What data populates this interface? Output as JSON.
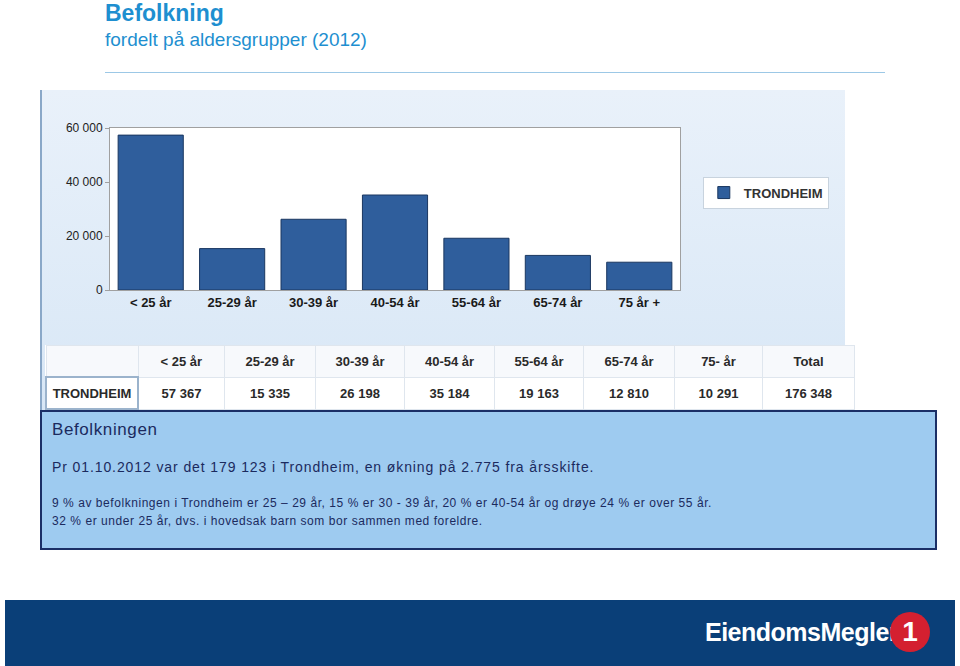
{
  "header": {
    "title": "Befolkning",
    "subtitle": "fordelt på aldersgrupper (2012)"
  },
  "chart_data": {
    "type": "bar",
    "categories": [
      "< 25 år",
      "25-29 år",
      "30-39 år",
      "40-54 år",
      "55-64 år",
      "65-74 år",
      "75 år +"
    ],
    "series": [
      {
        "name": "TRONDHEIM",
        "color": "#2f5e9c",
        "values": [
          57367,
          15335,
          26198,
          35184,
          19163,
          12810,
          10291
        ]
      }
    ],
    "ylim": [
      0,
      60000
    ],
    "yticks": [
      0,
      {
        "value": 20000,
        "label": "20 000"
      },
      {
        "value": 40000,
        "label": "40 000"
      },
      {
        "value": 60000,
        "label": "60 000"
      }
    ],
    "grid": false,
    "legend": "right"
  },
  "table": {
    "header": [
      null,
      "< 25 år",
      "25-29 år",
      "30-39 år",
      "40-54 år",
      "55-64 år",
      "65-74 år",
      "75- år",
      "Total"
    ],
    "rows": [
      [
        "TRONDHEIM",
        "57 367",
        "15 335",
        "26 198",
        "35 184",
        "19 163",
        "12 810",
        "10 291",
        "176 348"
      ]
    ]
  },
  "textbox": {
    "title": "Befolkningen",
    "lead": "Pr 01.10.2012 var det 179 123 i Trondheim, en økning på 2.775 fra årsskifte.",
    "paragraph": [
      "9 % av befolkningen i Trondheim er 25 – 29 år, 15 % er 30 - 39 år, 20 % er 40-54 år og drøye 24 % er over 55 år.",
      "32 % er under 25 år, dvs. i hovedsak barn som bor sammen med foreldre."
    ]
  },
  "footer": {
    "logo_text": "EiendomsMegler",
    "logo_mark": "1"
  }
}
